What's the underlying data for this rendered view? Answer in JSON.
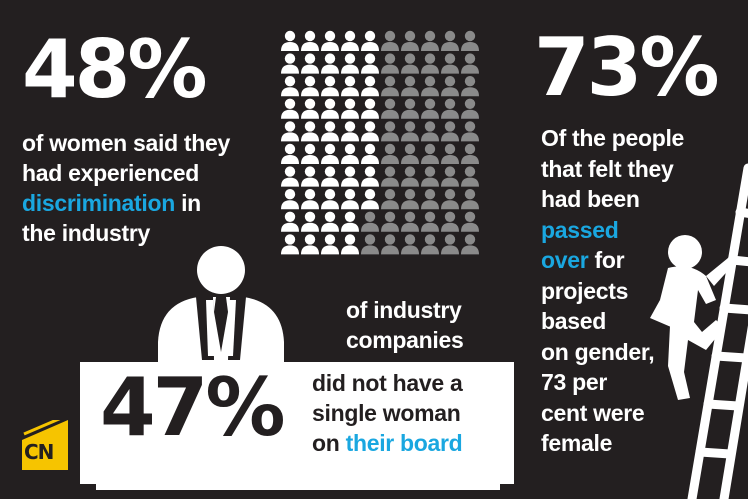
{
  "stat1": {
    "value": "48%",
    "line1": "of women said they",
    "line2": "had experienced",
    "highlight": "discrimination",
    "after_highlight": " in",
    "line4": "the industry"
  },
  "stat2": {
    "value": "47%",
    "top_line1": "of industry",
    "top_line2": "companies",
    "line1": "did not have a",
    "line2": "single woman",
    "pre_highlight": "on ",
    "highlight": "their board"
  },
  "stat3": {
    "value": "73%",
    "line1": "Of the people",
    "line2": "that felt they",
    "line3": "had been",
    "highlight1": "passed",
    "highlight2": "over",
    "after_highlight2": " for",
    "line6": "projects",
    "line7": "based",
    "line8": "on gender,",
    "line9": "73 per",
    "line10": "cent were",
    "line11": "female"
  },
  "people_grid": {
    "columns": 10,
    "rows": 10,
    "highlighted_count": 48,
    "highlight_color": "#ffffff",
    "rest_color": "#8a8a8a"
  },
  "colors": {
    "background": "#231f20",
    "accent": "#1aa7e0",
    "logo_yellow": "#f6c400"
  },
  "logo": {
    "text": "CN",
    "icon": "cn-logo-icon"
  }
}
